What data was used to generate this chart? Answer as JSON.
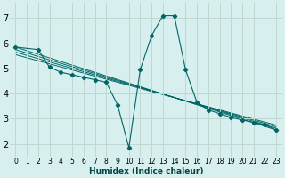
{
  "title": "",
  "xlabel": "Humidex (Indice chaleur)",
  "bg_color": "#d8efef",
  "grid_color": "#c0d8d0",
  "line_color": "#006666",
  "xlim": [
    -0.5,
    23.5
  ],
  "ylim": [
    1.5,
    7.6
  ],
  "xticks": [
    0,
    1,
    2,
    3,
    4,
    5,
    6,
    7,
    8,
    9,
    10,
    11,
    12,
    13,
    14,
    15,
    16,
    17,
    18,
    19,
    20,
    21,
    22,
    23
  ],
  "yticks": [
    2,
    3,
    4,
    5,
    6,
    7
  ],
  "main_series": {
    "x": [
      0,
      2,
      3,
      4,
      5,
      6,
      7,
      8,
      9,
      10,
      11,
      12,
      13,
      14,
      15,
      16,
      17,
      18,
      19,
      20,
      21,
      22,
      23
    ],
    "y": [
      5.85,
      5.75,
      5.05,
      4.85,
      4.75,
      4.65,
      4.55,
      4.45,
      3.55,
      1.85,
      4.95,
      6.3,
      7.1,
      7.1,
      4.95,
      3.65,
      3.35,
      3.2,
      3.05,
      2.95,
      2.85,
      2.75,
      2.55
    ]
  },
  "regression_lines": [
    {
      "x": [
        0,
        23
      ],
      "y": [
        5.85,
        2.55
      ]
    },
    {
      "x": [
        0,
        23
      ],
      "y": [
        5.75,
        2.62
      ]
    },
    {
      "x": [
        0,
        23
      ],
      "y": [
        5.65,
        2.68
      ]
    },
    {
      "x": [
        0,
        23
      ],
      "y": [
        5.55,
        2.74
      ]
    }
  ]
}
